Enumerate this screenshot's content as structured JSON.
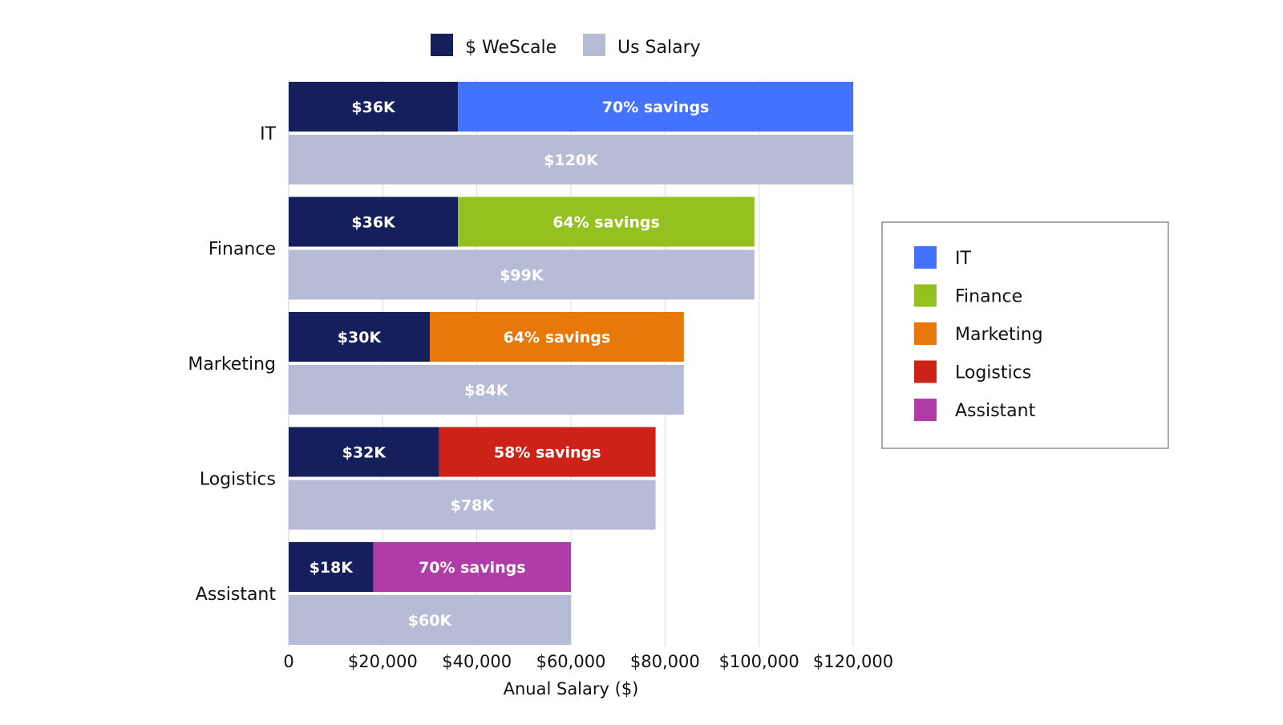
{
  "chart_data": {
    "type": "bar",
    "orientation": "horizontal",
    "title": "",
    "xlabel": "Anual Salary ($)",
    "ylabel": "",
    "xlim": [
      0,
      120000
    ],
    "x_ticks": [
      0,
      20000,
      40000,
      60000,
      80000,
      100000,
      120000
    ],
    "x_tick_labels": [
      "0",
      "$20,000",
      "$40,000",
      "$60,000",
      "$80,000",
      "$100,000",
      "$120,000"
    ],
    "categories": [
      "IT",
      "Finance",
      "Marketing",
      "Logistics",
      "Assistant"
    ],
    "series": [
      {
        "name": "$ WeScale",
        "color": "#141f5c",
        "values": [
          36000,
          36000,
          30000,
          32000,
          18000
        ],
        "labels": [
          "$36K",
          "$36K",
          "$30K",
          "$32K",
          "$18K"
        ]
      },
      {
        "name": "Savings",
        "values": [
          84000,
          63000,
          54000,
          46000,
          42000
        ],
        "labels": [
          "70% savings",
          "64% savings",
          "64% savings",
          "58% savings",
          "70% savings"
        ],
        "colors": [
          "#4272ff",
          "#94c11f",
          "#e8780a",
          "#cc2218",
          "#b03ca7"
        ]
      },
      {
        "name": "Us Salary",
        "color": "#b7bcd6",
        "values": [
          120000,
          99000,
          84000,
          78000,
          60000
        ],
        "labels": [
          "$120K",
          "$99K",
          "$84K",
          "$78K",
          "$60K"
        ]
      }
    ],
    "top_legend": [
      {
        "label": "$ WeScale",
        "color": "#141f5c"
      },
      {
        "label": "Us Salary",
        "color": "#b7bcd6"
      }
    ],
    "category_legend": [
      {
        "label": "IT",
        "color": "#4272ff"
      },
      {
        "label": "Finance",
        "color": "#94c11f"
      },
      {
        "label": "Marketing",
        "color": "#e8780a"
      },
      {
        "label": "Logistics",
        "color": "#cc2218"
      },
      {
        "label": "Assistant",
        "color": "#b03ca7"
      }
    ],
    "grid": true,
    "top_legend_position": "top-center",
    "category_legend_position": "right"
  }
}
